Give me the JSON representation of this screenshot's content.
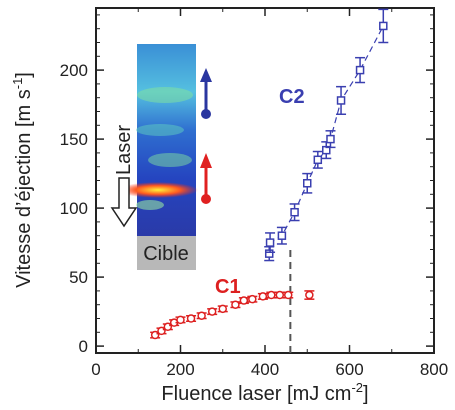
{
  "chart_data": {
    "type": "scatter",
    "xlabel": "Fluence laser [mJ cm",
    "xlabel_sup": "-2",
    "xlabel_end": "]",
    "ylabel": "Vitesse d’éjection [m s",
    "ylabel_sup": "-1",
    "ylabel_end": "]",
    "xlim": [
      0,
      800
    ],
    "ylim": [
      -5,
      245
    ],
    "x_ticks": [
      0,
      200,
      400,
      600,
      800
    ],
    "y_ticks": [
      0,
      50,
      100,
      150,
      200
    ],
    "x_tick_labels": [
      "0",
      "200",
      "400",
      "600",
      "800"
    ],
    "y_tick_labels": [
      "0",
      "50",
      "100",
      "150",
      "200"
    ],
    "threshold_x": 460,
    "series": [
      {
        "name": "C1",
        "color": "#dd2020",
        "marker": "circle",
        "points": [
          {
            "x": 140,
            "y": 8,
            "err": 2
          },
          {
            "x": 155,
            "y": 11,
            "err": 2
          },
          {
            "x": 170,
            "y": 14,
            "err": 2
          },
          {
            "x": 185,
            "y": 17,
            "err": 2
          },
          {
            "x": 200,
            "y": 19,
            "err": 2
          },
          {
            "x": 225,
            "y": 20,
            "err": 2
          },
          {
            "x": 250,
            "y": 22,
            "err": 2
          },
          {
            "x": 275,
            "y": 25,
            "err": 2
          },
          {
            "x": 300,
            "y": 27,
            "err": 2
          },
          {
            "x": 330,
            "y": 30,
            "err": 2
          },
          {
            "x": 350,
            "y": 33,
            "err": 2
          },
          {
            "x": 370,
            "y": 34,
            "err": 2
          },
          {
            "x": 395,
            "y": 36,
            "err": 2
          },
          {
            "x": 415,
            "y": 37,
            "err": 2
          },
          {
            "x": 435,
            "y": 37,
            "err": 2
          },
          {
            "x": 455,
            "y": 37,
            "err": 2
          },
          {
            "x": 505,
            "y": 37,
            "err": 3
          }
        ]
      },
      {
        "name": "C2",
        "color": "#3a3fb0",
        "marker": "square",
        "points": [
          {
            "x": 410,
            "y": 67,
            "err": 5
          },
          {
            "x": 412,
            "y": 75,
            "err": 7
          },
          {
            "x": 440,
            "y": 80,
            "err": 6
          },
          {
            "x": 470,
            "y": 97,
            "err": 6
          },
          {
            "x": 500,
            "y": 118,
            "err": 7
          },
          {
            "x": 525,
            "y": 135,
            "err": 6
          },
          {
            "x": 545,
            "y": 142,
            "err": 6
          },
          {
            "x": 555,
            "y": 150,
            "err": 6
          },
          {
            "x": 580,
            "y": 178,
            "err": 10
          },
          {
            "x": 625,
            "y": 200,
            "err": 9
          },
          {
            "x": 680,
            "y": 232,
            "err": 12
          }
        ]
      }
    ],
    "inset": {
      "label": "Laser",
      "target_label": "Cible"
    }
  }
}
